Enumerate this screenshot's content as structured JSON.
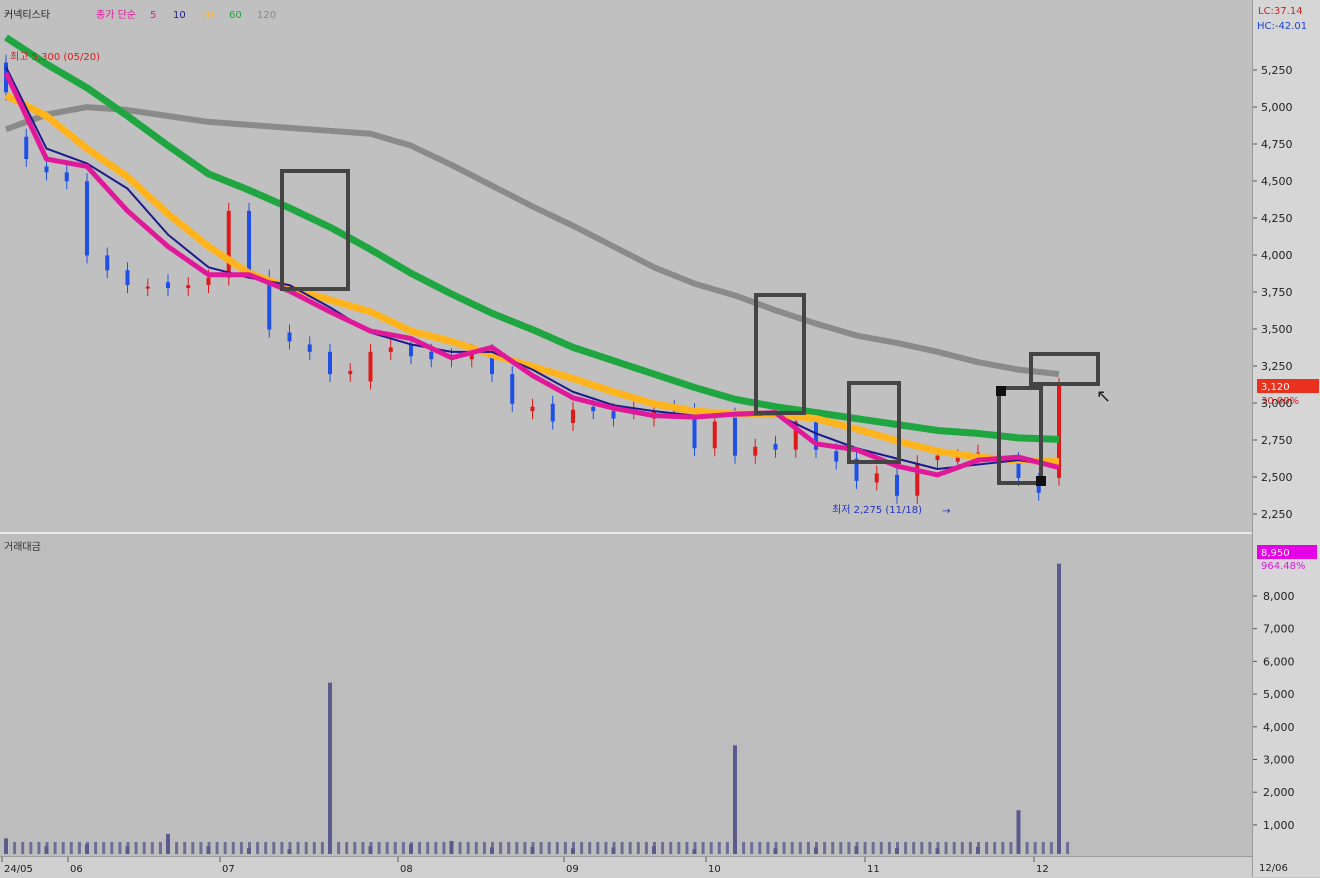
{
  "legend": {
    "stock_name": "커넥티스타",
    "ma_label": "종가 단순",
    "periods": [
      "5",
      "10",
      "20",
      "60",
      "120"
    ]
  },
  "colors": {
    "ma5": "#e0199a",
    "ma10": "#1a1a8c",
    "ma20": "#ffb41e",
    "ma60": "#1fa640",
    "ma120": "#8a8a8a",
    "up": "#e01818",
    "down": "#1e50e6",
    "volume": "#5a5a8c",
    "highlight_box": "#444444"
  },
  "top_right": {
    "lc": "LC:37.14",
    "hc": "HC:-42.01"
  },
  "annotations": {
    "high": "최고 5,300 (05/20)",
    "low": "최저 2,275 (11/18)"
  },
  "price_badge": {
    "value": "3,120",
    "change": "30.00%"
  },
  "volume_panel": {
    "title": "거래대금"
  },
  "volume_badge": {
    "value": "8,950",
    "change": "964.48%"
  },
  "chart_data": [
    {
      "type": "line",
      "title": "",
      "series": [
        {
          "name": "5",
          "x": [
            0,
            10,
            20,
            30,
            40,
            50,
            60,
            70,
            80,
            90,
            100,
            110,
            120,
            130,
            140,
            150,
            160,
            170,
            180,
            190,
            200,
            210,
            220,
            230,
            240,
            250,
            260
          ],
          "values": [
            5230,
            4650,
            4600,
            4300,
            4060,
            3870,
            3870,
            3760,
            3620,
            3490,
            3440,
            3310,
            3380,
            3190,
            3040,
            2970,
            2920,
            2910,
            2930,
            2940,
            2730,
            2690,
            2580,
            2520,
            2620,
            2640,
            2570
          ]
        },
        {
          "name": "10",
          "x": [
            0,
            10,
            20,
            30,
            40,
            50,
            60,
            70,
            80,
            90,
            100,
            110,
            120,
            130,
            140,
            150,
            160,
            170,
            180,
            190,
            200,
            210,
            220,
            230,
            240,
            250,
            260
          ],
          "values": [
            5270,
            4720,
            4620,
            4450,
            4140,
            3920,
            3850,
            3800,
            3650,
            3480,
            3400,
            3350,
            3350,
            3230,
            3080,
            2990,
            2950,
            2920,
            2920,
            2930,
            2800,
            2700,
            2630,
            2560,
            2590,
            2620,
            2580
          ]
        },
        {
          "name": "20",
          "x": [
            0,
            10,
            20,
            30,
            40,
            50,
            60,
            70,
            80,
            90,
            100,
            110,
            120,
            130,
            140,
            150,
            160,
            170,
            180,
            190,
            200,
            210,
            220,
            230,
            240,
            250,
            260
          ],
          "values": [
            5080,
            4940,
            4720,
            4530,
            4280,
            4060,
            3880,
            3780,
            3700,
            3620,
            3490,
            3420,
            3330,
            3250,
            3170,
            3080,
            3000,
            2950,
            2930,
            2930,
            2900,
            2830,
            2750,
            2680,
            2640,
            2620,
            2610
          ]
        },
        {
          "name": "60",
          "x": [
            0,
            10,
            20,
            30,
            40,
            50,
            60,
            70,
            80,
            90,
            100,
            110,
            120,
            130,
            140,
            150,
            160,
            170,
            180,
            190,
            200,
            210,
            220,
            230,
            240,
            250,
            260
          ],
          "values": [
            5470,
            5290,
            5130,
            4940,
            4740,
            4550,
            4440,
            4320,
            4190,
            4040,
            3880,
            3740,
            3610,
            3500,
            3380,
            3290,
            3200,
            3110,
            3030,
            2980,
            2940,
            2900,
            2860,
            2820,
            2800,
            2770,
            2760
          ]
        },
        {
          "name": "120",
          "x": [
            0,
            10,
            20,
            30,
            40,
            50,
            60,
            70,
            80,
            90,
            100,
            110,
            120,
            130,
            140,
            150,
            160,
            170,
            180,
            190,
            200,
            210,
            220,
            230,
            240,
            250,
            260
          ],
          "values": [
            4850,
            4950,
            5000,
            4980,
            4940,
            4900,
            4880,
            4860,
            4840,
            4820,
            4740,
            4610,
            4470,
            4330,
            4200,
            4060,
            3920,
            3810,
            3730,
            3630,
            3540,
            3460,
            3410,
            3350,
            3280,
            3230,
            3200
          ]
        }
      ],
      "candles": {
        "x": [
          0,
          5,
          10,
          15,
          20,
          25,
          30,
          35,
          40,
          45,
          50,
          55,
          60,
          65,
          70,
          75,
          80,
          85,
          90,
          95,
          100,
          105,
          110,
          115,
          120,
          125,
          130,
          135,
          140,
          145,
          150,
          155,
          160,
          165,
          170,
          175,
          180,
          185,
          190,
          195,
          200,
          205,
          210,
          215,
          220,
          225,
          230,
          235,
          240,
          245,
          250,
          255,
          260
        ],
        "open": [
          5300,
          4800,
          4600,
          4560,
          4500,
          4000,
          3900,
          3780,
          3820,
          3780,
          3800,
          3850,
          4300,
          3850,
          3480,
          3400,
          3350,
          3200,
          3150,
          3350,
          3400,
          3350,
          3300,
          3300,
          3350,
          3200,
          2950,
          3000,
          2870,
          2980,
          2950,
          2950,
          2900,
          2970,
          2950,
          2700,
          2920,
          2650,
          2730,
          2690,
          2900,
          2680,
          2630,
          2470,
          2520,
          2380,
          2620,
          2610,
          2640,
          2650,
          2620,
          2480,
          2500
        ],
        "close": [
          5100,
          4650,
          4560,
          4500,
          4000,
          3900,
          3800,
          3790,
          3780,
          3800,
          3850,
          4300,
          3900,
          3500,
          3420,
          3350,
          3200,
          3220,
          3350,
          3380,
          3320,
          3300,
          3320,
          3350,
          3200,
          3000,
          2980,
          2880,
          2960,
          2950,
          2900,
          2960,
          2950,
          2950,
          2700,
          2880,
          2650,
          2710,
          2690,
          2880,
          2690,
          2610,
          2480,
          2530,
          2380,
          2600,
          2650,
          2640,
          2670,
          2620,
          2500,
          2400,
          3120
        ],
        "ylim": [
          2275,
          5300
        ]
      },
      "volume": {
        "name": "거래대금",
        "x": [
          0,
          10,
          20,
          30,
          40,
          50,
          60,
          70,
          80,
          90,
          100,
          110,
          120,
          130,
          140,
          150,
          160,
          170,
          180,
          190,
          200,
          210,
          220,
          230,
          240,
          250,
          260
        ],
        "values": [
          480,
          240,
          300,
          240,
          620,
          240,
          180,
          150,
          5280,
          240,
          300,
          400,
          200,
          220,
          180,
          200,
          240,
          150,
          3350,
          180,
          200,
          240,
          180,
          180,
          220,
          1350,
          8950
        ],
        "ylim": [
          0,
          9000
        ]
      },
      "yticks": [
        "5,250",
        "5,000",
        "4,750",
        "4,500",
        "4,250",
        "4,000",
        "3,750",
        "3,500",
        "3,250",
        "3,000",
        "2,750",
        "2,500",
        "2,250"
      ],
      "volume_ticks": [
        "8,000",
        "7,000",
        "6,000",
        "5,000",
        "4,000",
        "3,000",
        "2,000",
        "1,000"
      ],
      "xticks": [
        "24/05",
        "06",
        "07",
        "08",
        "09",
        "10",
        "11",
        "12",
        "12/06"
      ]
    }
  ]
}
